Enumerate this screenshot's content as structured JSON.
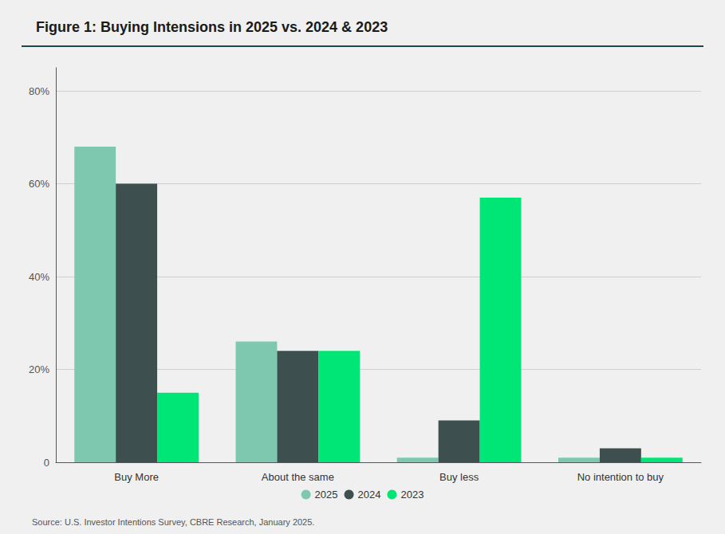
{
  "chart_data": {
    "type": "bar",
    "title": "Figure 1: Buying Intensions in 2025 vs. 2024 & 2023",
    "categories": [
      "Buy More",
      "About the same",
      "Buy less",
      "No intention to buy"
    ],
    "series": [
      {
        "name": "2025",
        "color": "#7ec8b0",
        "values": [
          68,
          26,
          1,
          1
        ]
      },
      {
        "name": "2024",
        "color": "#3d4f4f",
        "values": [
          60,
          24,
          9,
          3
        ]
      },
      {
        "name": "2023",
        "color": "#00e676",
        "values": [
          15,
          24,
          57,
          1
        ]
      }
    ],
    "ylim": [
      0,
      85
    ],
    "yticks": [
      0,
      {
        "value": 20,
        "label": "20%"
      },
      {
        "value": 40,
        "label": "40%"
      },
      {
        "value": 60,
        "label": "60%"
      },
      {
        "value": 80,
        "label": "80%"
      }
    ],
    "grid": true,
    "legend": "bottom",
    "annotations": [
      "Source: U.S. Investor Intentions Survey, CBRE Research, January 2025."
    ]
  }
}
